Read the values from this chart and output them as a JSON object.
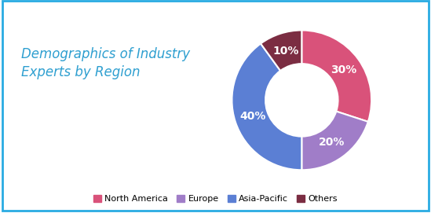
{
  "title": "Demographics of Industry\nExperts by Region",
  "title_color": "#2E9FD0",
  "title_fontsize": 12,
  "slices": [
    30,
    20,
    40,
    10
  ],
  "labels": [
    "North America",
    "Europe",
    "Asia-Pacific",
    "Others"
  ],
  "colors": [
    "#D9527A",
    "#A07DC8",
    "#5B7FD4",
    "#7B2D42"
  ],
  "pct_labels": [
    "30%",
    "20%",
    "40%",
    "10%"
  ],
  "legend_labels": [
    "North America",
    "Europe",
    "Asia-Pacific",
    "Others"
  ],
  "background_color": "#FFFFFF",
  "border_color": "#29ABE2",
  "startangle": 90
}
